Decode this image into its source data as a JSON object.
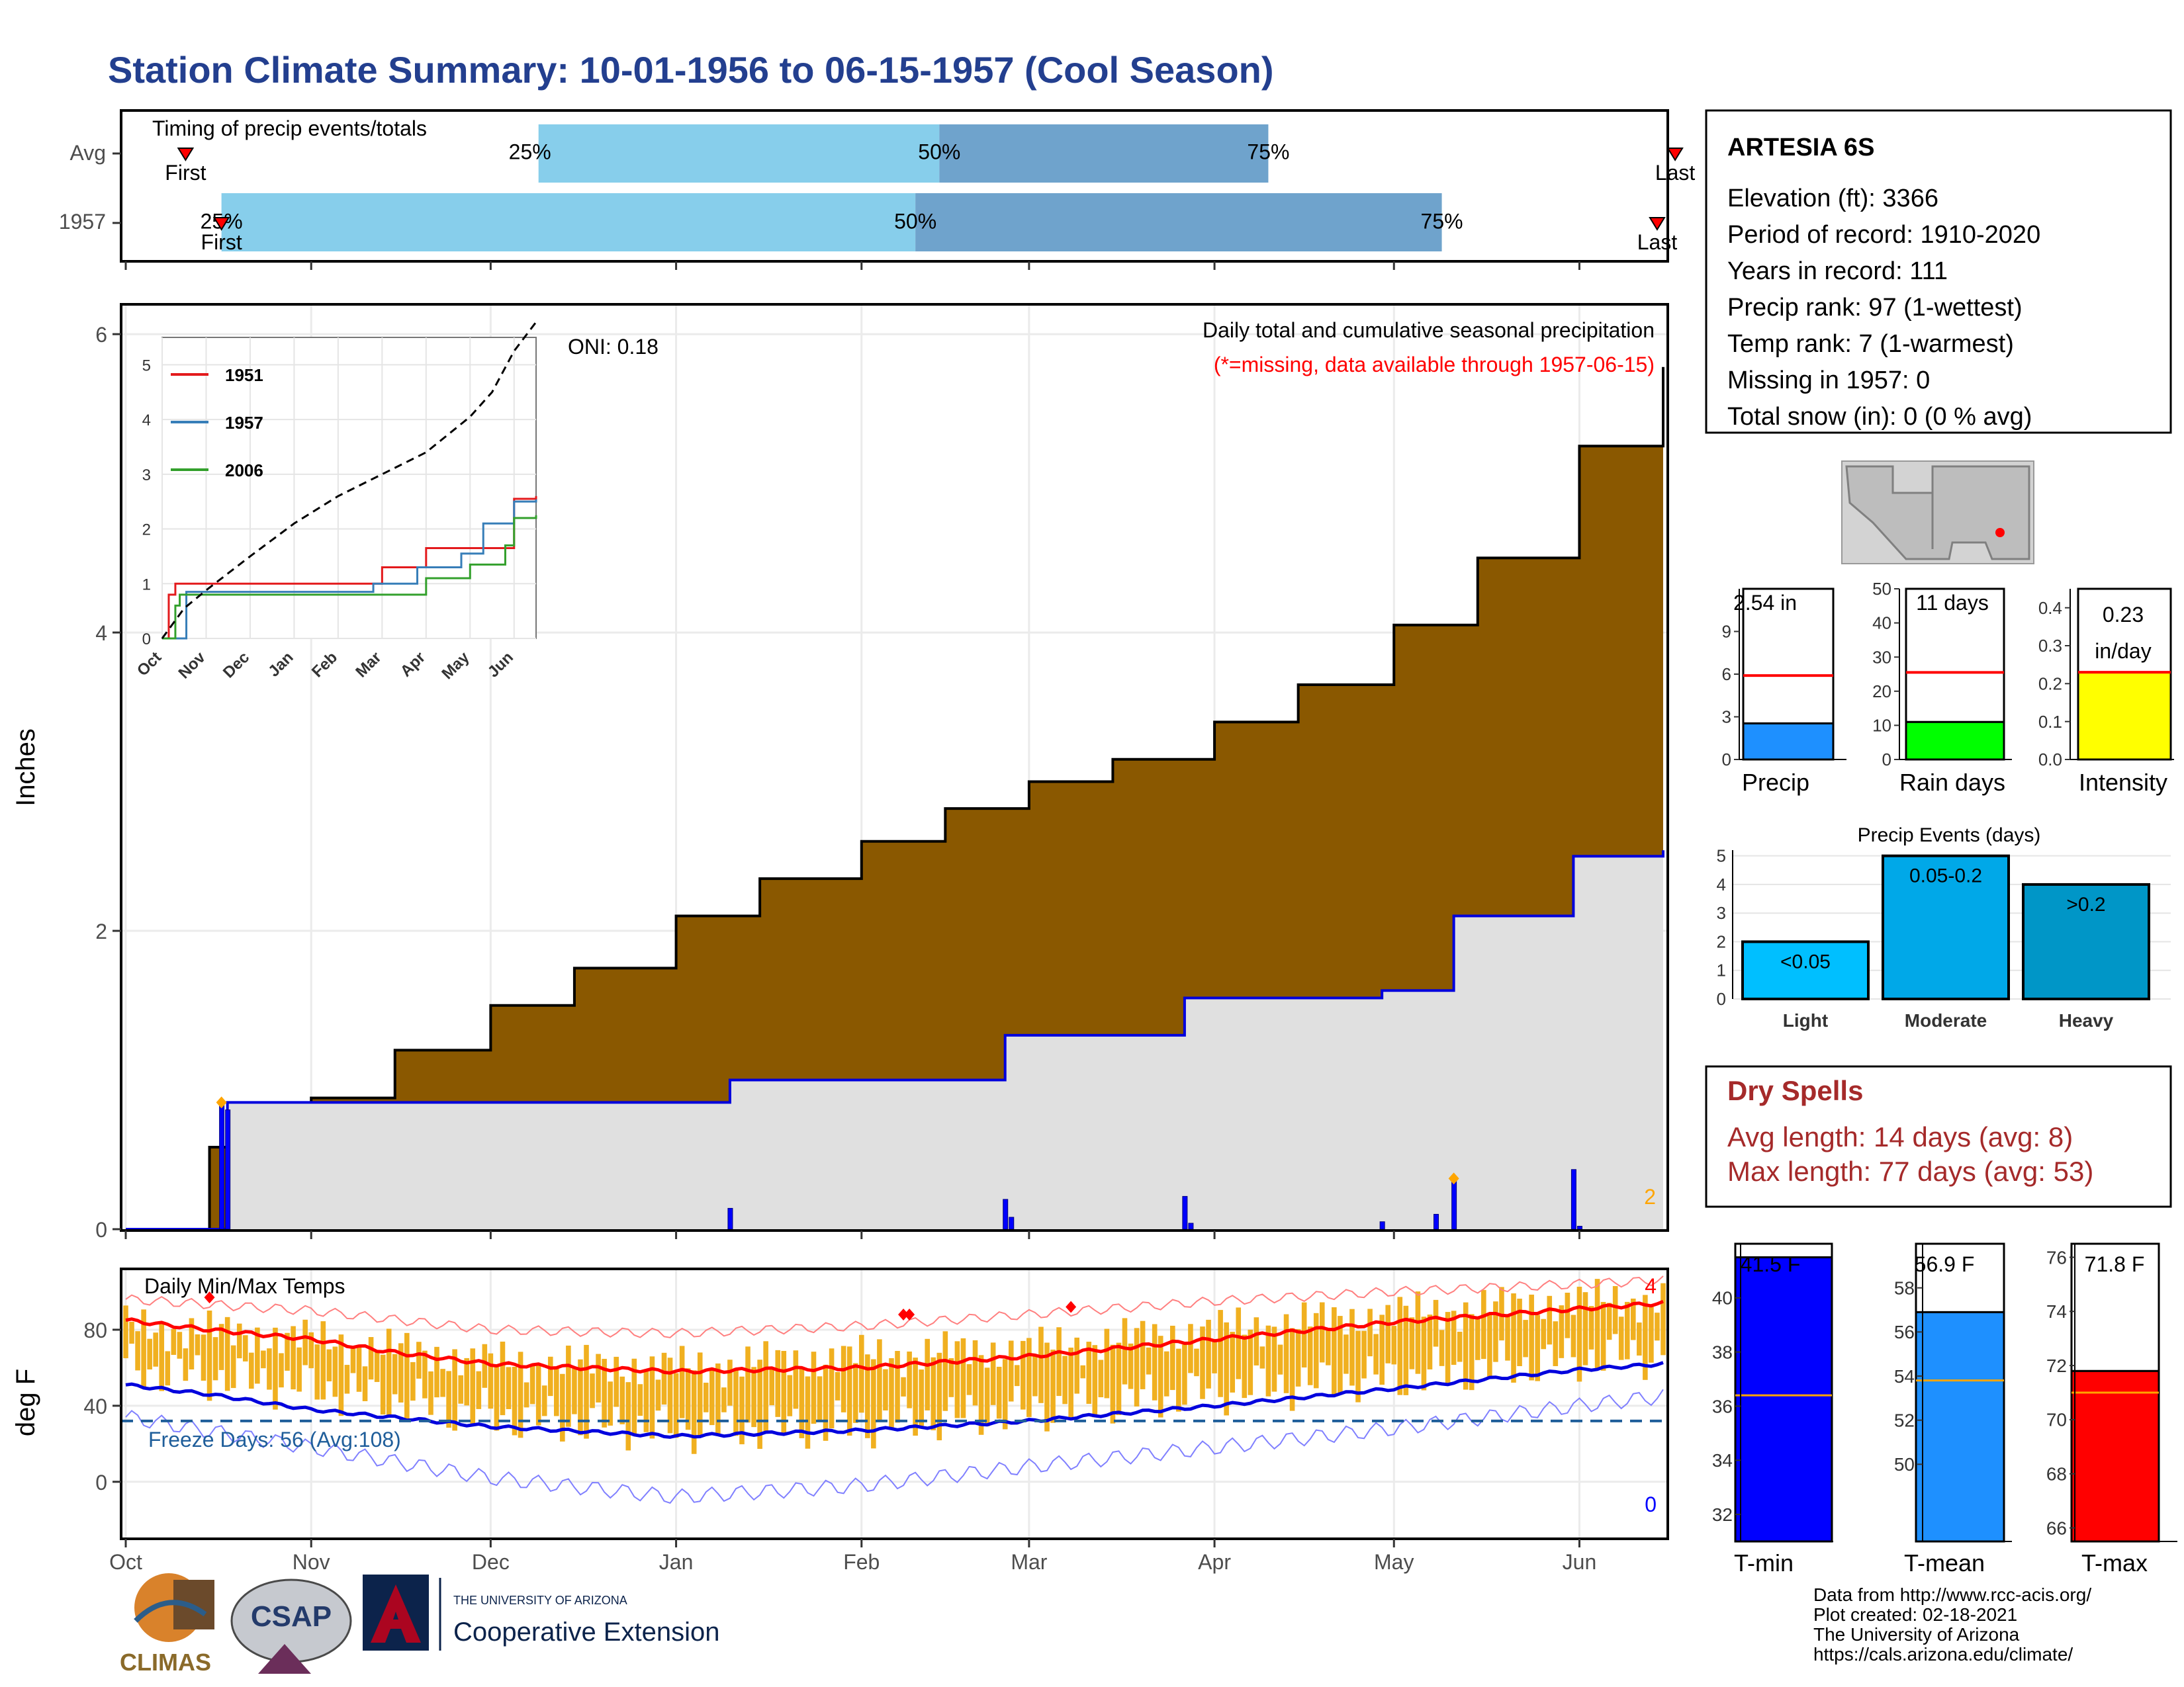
{
  "page": {
    "title": "Station Climate Summary: 10-01-1956 to 06-15-1957 (Cool Season)"
  },
  "months": [
    "Oct",
    "Nov",
    "Dec",
    "Jan",
    "Feb",
    "Mar",
    "Apr",
    "May",
    "Jun"
  ],
  "timing": {
    "title": "Timing of precip events/totals",
    "row_labels": [
      "Avg",
      "1957"
    ],
    "first_label": "First",
    "last_label": "Last",
    "p25_label": "25%",
    "p50_label": "50%",
    "p75_label": "75%"
  },
  "station": {
    "name": "ARTESIA 6S",
    "lines": [
      "Elevation (ft): 3366",
      "Period of record: 1910-2020",
      "Years in record: 111",
      "Precip rank: 97 (1-wettest)",
      "Temp rank: 7 (1-warmest)",
      "Missing in 1957: 0",
      "Total snow (in): 0 (0 % avg)"
    ]
  },
  "precip_panel": {
    "ylabel": "Inches",
    "caption1": "Daily total and cumulative seasonal precipitation",
    "caption2": "(*=missing, data available through 1957-06-15)",
    "oni": "ONI: 0.18",
    "right_count": "2",
    "legend": [
      "1951",
      "1957",
      "2006"
    ]
  },
  "temp_panel": {
    "ylabel": "deg F",
    "title": "Daily Min/Max Temps",
    "freeze": "Freeze Days: 56 (Avg:108)",
    "count_hot": "4",
    "count_cold": "0"
  },
  "mini_bars": {
    "precip": {
      "label": "Precip",
      "value_text": "2.54 in"
    },
    "raindays": {
      "label": "Rain days",
      "value_text": "11 days"
    },
    "intensity": {
      "label": "Intensity",
      "value_text_1": "0.23",
      "value_text_2": "in/day"
    }
  },
  "events": {
    "title": "Precip Events (days)",
    "categories": [
      "Light",
      "Moderate",
      "Heavy"
    ],
    "bar_labels": [
      "<0.05",
      "0.05-0.2",
      ">0.2"
    ]
  },
  "dry_spells": {
    "title": "Dry Spells",
    "avg": "Avg length: 14 days (avg: 8)",
    "max": "Max length: 77 days (avg: 53)"
  },
  "temp_bars": {
    "tmin": {
      "label": "T-min",
      "value_text": "41.5 F"
    },
    "tmean": {
      "label": "T-mean",
      "value_text": "56.9 F"
    },
    "tmax": {
      "label": "T-max",
      "value_text": "71.8 F"
    }
  },
  "footer": {
    "lines": [
      "Data from http://www.rcc-acis.org/",
      "Plot created: 02-18-2021",
      "The University of Arizona",
      "https://cals.arizona.edu/climate/"
    ],
    "logo_climas": "CLIMAS",
    "logo_csap": "CSAP",
    "logo_ua_small": "THE UNIVERSITY OF ARIZONA",
    "logo_ua_big": "Cooperative Extension"
  },
  "colors": {
    "avg_fill": "#8a5800",
    "year_fill": "#e0e0e0",
    "year_line": "#0000dd",
    "q1": "#87ceeb",
    "q2": "#6fa3cc",
    "tmax_line": "#ff0000",
    "tmin_line": "#0000dd",
    "bar_temp": "#f0b020",
    "title": "#233f8f",
    "dry": "#a52a2a"
  },
  "chart_data": [
    {
      "type": "bar",
      "name": "timing",
      "x_unit": "date",
      "rows": [
        {
          "label": "Avg",
          "first": "1956-10-11",
          "p25": "1956-12-09",
          "p50": "1957-02-14",
          "p75": "1957-04-10",
          "last": "1957-06-17"
        },
        {
          "label": "1957",
          "first": "1956-10-17",
          "p25": "1956-10-17",
          "p50": "1957-02-10",
          "p75": "1957-05-09",
          "last": "1957-06-14"
        }
      ]
    },
    {
      "type": "area",
      "name": "precipitation",
      "xlim": [
        "1956-10-01",
        "1957-06-15"
      ],
      "ylim": [
        0,
        6.2
      ],
      "yticks": [
        0,
        2,
        4,
        6
      ],
      "avg_cumulative": [
        {
          "x": "1956-10-01",
          "y": 0.0
        },
        {
          "x": "1956-10-15",
          "y": 0.55
        },
        {
          "x": "1956-11-01",
          "y": 0.88
        },
        {
          "x": "1956-11-15",
          "y": 1.2
        },
        {
          "x": "1956-12-01",
          "y": 1.5
        },
        {
          "x": "1956-12-15",
          "y": 1.75
        },
        {
          "x": "1957-01-01",
          "y": 2.1
        },
        {
          "x": "1957-01-15",
          "y": 2.35
        },
        {
          "x": "1957-02-01",
          "y": 2.6
        },
        {
          "x": "1957-02-15",
          "y": 2.82
        },
        {
          "x": "1957-03-01",
          "y": 3.0
        },
        {
          "x": "1957-03-15",
          "y": 3.15
        },
        {
          "x": "1957-04-01",
          "y": 3.4
        },
        {
          "x": "1957-04-15",
          "y": 3.65
        },
        {
          "x": "1957-05-01",
          "y": 4.05
        },
        {
          "x": "1957-05-15",
          "y": 4.5
        },
        {
          "x": "1957-06-01",
          "y": 5.25
        },
        {
          "x": "1957-06-15",
          "y": 5.78
        }
      ],
      "year_cumulative": [
        {
          "x": "1956-10-01",
          "y": 0.0
        },
        {
          "x": "1956-10-17",
          "y": 0.0
        },
        {
          "x": "1956-10-18",
          "y": 0.85
        },
        {
          "x": "1957-01-09",
          "y": 0.85
        },
        {
          "x": "1957-01-10",
          "y": 1.0
        },
        {
          "x": "1957-02-24",
          "y": 1.0
        },
        {
          "x": "1957-02-25",
          "y": 1.3
        },
        {
          "x": "1957-03-26",
          "y": 1.3
        },
        {
          "x": "1957-03-27",
          "y": 1.55
        },
        {
          "x": "1957-04-28",
          "y": 1.55
        },
        {
          "x": "1957-04-29",
          "y": 1.6
        },
        {
          "x": "1957-05-10",
          "y": 1.6
        },
        {
          "x": "1957-05-11",
          "y": 2.1
        },
        {
          "x": "1957-05-30",
          "y": 2.1
        },
        {
          "x": "1957-05-31",
          "y": 2.5
        },
        {
          "x": "1957-06-15",
          "y": 2.54
        }
      ],
      "daily": [
        {
          "x": "1956-10-17",
          "y": 0.85
        },
        {
          "x": "1956-10-18",
          "y": 0.8
        },
        {
          "x": "1957-01-10",
          "y": 0.14
        },
        {
          "x": "1957-02-25",
          "y": 0.2
        },
        {
          "x": "1957-02-26",
          "y": 0.08
        },
        {
          "x": "1957-03-27",
          "y": 0.22
        },
        {
          "x": "1957-03-28",
          "y": 0.04
        },
        {
          "x": "1957-04-29",
          "y": 0.05
        },
        {
          "x": "1957-05-08",
          "y": 0.1
        },
        {
          "x": "1957-05-11",
          "y": 0.34
        },
        {
          "x": "1957-05-31",
          "y": 0.4
        },
        {
          "x": "1957-06-01",
          "y": 0.02
        }
      ]
    },
    {
      "type": "line",
      "name": "inset-cumulative",
      "xticks": [
        "Oct",
        "Nov",
        "Dec",
        "Jan",
        "Feb",
        "Mar",
        "Apr",
        "May",
        "Jun"
      ],
      "yticks": [
        0,
        1,
        2,
        3,
        4,
        5
      ],
      "ylim": [
        0,
        5.5
      ],
      "series": [
        {
          "name": "1951",
          "color": "#e31a1c",
          "x": [
            0,
            0.15,
            0.3,
            1.0,
            4.0,
            5.0,
            6.0,
            7.5,
            8.0,
            8.5
          ],
          "y": [
            0,
            0.8,
            1.0,
            1.0,
            1.0,
            1.3,
            1.65,
            1.65,
            2.55,
            2.6
          ]
        },
        {
          "name": "1957",
          "color": "#377eb8",
          "x": [
            0,
            0.5,
            0.55,
            3.3,
            4.8,
            5.8,
            6.8,
            7.3,
            8.0,
            8.5
          ],
          "y": [
            0,
            0,
            0.85,
            0.85,
            1.0,
            1.3,
            1.55,
            2.1,
            2.5,
            2.54
          ]
        },
        {
          "name": "2006",
          "color": "#33a02c",
          "x": [
            0,
            0.3,
            0.4,
            5.0,
            6.0,
            7.0,
            7.8,
            8.0,
            8.5
          ],
          "y": [
            0,
            0.6,
            0.8,
            0.8,
            1.1,
            1.35,
            1.7,
            2.2,
            2.25
          ]
        },
        {
          "name": "Avg",
          "color": "#000000",
          "dashed": true,
          "x": [
            0,
            0.5,
            1,
            2,
            3,
            4,
            5,
            6,
            7,
            7.5,
            8,
            8.5
          ],
          "y": [
            0,
            0.55,
            0.88,
            1.5,
            2.1,
            2.6,
            3.0,
            3.4,
            4.05,
            4.5,
            5.25,
            5.78
          ]
        }
      ]
    },
    {
      "type": "line",
      "name": "temperature",
      "ylim": [
        -30,
        112
      ],
      "yticks": [
        0,
        40,
        80
      ],
      "xlim": [
        "1956-10-01",
        "1957-06-15"
      ],
      "normal_tmax": [
        {
          "x": "1956-10-01",
          "y": 85
        },
        {
          "x": "1956-10-15",
          "y": 80
        },
        {
          "x": "1956-11-01",
          "y": 75
        },
        {
          "x": "1956-11-15",
          "y": 68
        },
        {
          "x": "1956-12-01",
          "y": 62
        },
        {
          "x": "1957-01-01",
          "y": 58
        },
        {
          "x": "1957-02-01",
          "y": 60
        },
        {
          "x": "1957-03-01",
          "y": 66
        },
        {
          "x": "1957-04-01",
          "y": 75
        },
        {
          "x": "1957-05-01",
          "y": 84
        },
        {
          "x": "1957-06-01",
          "y": 91
        },
        {
          "x": "1957-06-15",
          "y": 94
        }
      ],
      "normal_tmin": [
        {
          "x": "1956-10-01",
          "y": 51
        },
        {
          "x": "1956-10-15",
          "y": 46
        },
        {
          "x": "1956-11-01",
          "y": 38
        },
        {
          "x": "1956-12-01",
          "y": 29
        },
        {
          "x": "1957-01-01",
          "y": 24
        },
        {
          "x": "1957-02-01",
          "y": 27
        },
        {
          "x": "1957-03-01",
          "y": 32
        },
        {
          "x": "1957-04-01",
          "y": 40
        },
        {
          "x": "1957-05-01",
          "y": 49
        },
        {
          "x": "1957-06-01",
          "y": 59
        },
        {
          "x": "1957-06-15",
          "y": 62
        }
      ],
      "record_high": [
        {
          "x": "1956-10-01",
          "y": 96
        },
        {
          "x": "1956-11-01",
          "y": 90
        },
        {
          "x": "1956-12-01",
          "y": 80
        },
        {
          "x": "1957-01-01",
          "y": 78
        },
        {
          "x": "1957-02-01",
          "y": 82
        },
        {
          "x": "1957-03-01",
          "y": 88
        },
        {
          "x": "1957-04-01",
          "y": 95
        },
        {
          "x": "1957-05-01",
          "y": 100
        },
        {
          "x": "1957-06-01",
          "y": 104
        },
        {
          "x": "1957-06-15",
          "y": 106
        }
      ],
      "record_low": [
        {
          "x": "1956-10-01",
          "y": 34
        },
        {
          "x": "1956-11-01",
          "y": 18
        },
        {
          "x": "1956-12-01",
          "y": 2
        },
        {
          "x": "1957-01-01",
          "y": -8
        },
        {
          "x": "1957-02-01",
          "y": -2
        },
        {
          "x": "1957-03-01",
          "y": 8
        },
        {
          "x": "1957-04-01",
          "y": 18
        },
        {
          "x": "1957-05-01",
          "y": 28
        },
        {
          "x": "1957-06-01",
          "y": 40
        },
        {
          "x": "1957-06-15",
          "y": 45
        }
      ],
      "daily_range_min": [
        {
          "x": "1956-10-01",
          "y": 60
        },
        {
          "x": "1956-11-01",
          "y": 50
        },
        {
          "x": "1956-12-01",
          "y": 35
        },
        {
          "x": "1957-01-01",
          "y": 28
        },
        {
          "x": "1957-02-01",
          "y": 30
        },
        {
          "x": "1957-03-01",
          "y": 38
        },
        {
          "x": "1957-04-01",
          "y": 48
        },
        {
          "x": "1957-05-01",
          "y": 55
        },
        {
          "x": "1957-06-01",
          "y": 65
        },
        {
          "x": "1957-06-15",
          "y": 68
        }
      ],
      "daily_range_max": [
        {
          "x": "1956-10-01",
          "y": 82
        },
        {
          "x": "1956-11-01",
          "y": 75
        },
        {
          "x": "1956-12-01",
          "y": 63
        },
        {
          "x": "1957-01-01",
          "y": 60
        },
        {
          "x": "1957-02-01",
          "y": 66
        },
        {
          "x": "1957-03-01",
          "y": 70
        },
        {
          "x": "1957-04-01",
          "y": 80
        },
        {
          "x": "1957-05-01",
          "y": 88
        },
        {
          "x": "1957-06-01",
          "y": 95
        },
        {
          "x": "1957-06-15",
          "y": 96
        }
      ],
      "freeze_line": 32,
      "record_markers": [
        {
          "x": "1956-10-15",
          "y": 97
        },
        {
          "x": "1957-02-08",
          "y": 88
        },
        {
          "x": "1957-02-09",
          "y": 88
        },
        {
          "x": "1957-03-08",
          "y": 92
        }
      ]
    },
    {
      "type": "bar",
      "name": "precip-total",
      "ylim": [
        0,
        12
      ],
      "yticks": [
        0,
        3,
        6,
        9
      ],
      "values": [
        2.54
      ],
      "avg": 5.9,
      "color": "#1e90ff"
    },
    {
      "type": "bar",
      "name": "rain-days",
      "ylim": [
        0,
        50
      ],
      "yticks": [
        0,
        10,
        20,
        30,
        40,
        50
      ],
      "values": [
        11
      ],
      "avg": 25.5,
      "color": "#00ff00"
    },
    {
      "type": "bar",
      "name": "intensity",
      "ylim": [
        0,
        0.45
      ],
      "yticks": [
        0.0,
        0.1,
        0.2,
        0.3,
        0.4
      ],
      "values": [
        0.23
      ],
      "avg": 0.23,
      "color": "#ffff00"
    },
    {
      "type": "bar",
      "name": "precip-events",
      "categories": [
        "Light",
        "Moderate",
        "Heavy"
      ],
      "values": [
        2,
        5,
        4
      ],
      "ylim": [
        0,
        5.2
      ],
      "yticks": [
        0,
        1,
        2,
        3,
        4,
        5
      ]
    },
    {
      "type": "bar",
      "name": "tmin",
      "ylim": [
        31,
        42
      ],
      "yticks": [
        32,
        34,
        36,
        38,
        40
      ],
      "values": [
        41.5
      ],
      "avg": 36.4,
      "color": "#0000ff"
    },
    {
      "type": "bar",
      "name": "tmean",
      "ylim": [
        46.5,
        60
      ],
      "yticks": [
        50,
        52,
        54,
        56,
        58
      ],
      "values": [
        56.9
      ],
      "avg": 53.8,
      "color": "#1e90ff"
    },
    {
      "type": "bar",
      "name": "tmax",
      "ylim": [
        65.5,
        76.5
      ],
      "yticks": [
        66,
        68,
        70,
        72,
        74,
        76
      ],
      "values": [
        71.8
      ],
      "avg": 71.0,
      "color": "#ff0000"
    }
  ]
}
